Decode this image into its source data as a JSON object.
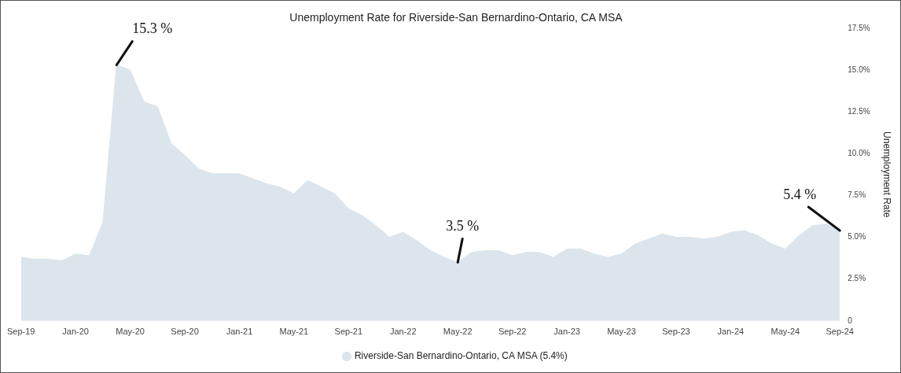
{
  "chart_data": {
    "type": "area",
    "title": "Unemployment Rate for Riverside-San Bernardino-Ontario, CA MSA",
    "ylabel": "Unemployment Rate",
    "x": [
      "2019-09",
      "2019-10",
      "2019-11",
      "2019-12",
      "2020-01",
      "2020-02",
      "2020-03",
      "2020-04",
      "2020-05",
      "2020-06",
      "2020-07",
      "2020-08",
      "2020-09",
      "2020-10",
      "2020-11",
      "2020-12",
      "2021-01",
      "2021-02",
      "2021-03",
      "2021-04",
      "2021-05",
      "2021-06",
      "2021-07",
      "2021-08",
      "2021-09",
      "2021-10",
      "2021-11",
      "2021-12",
      "2022-01",
      "2022-02",
      "2022-03",
      "2022-04",
      "2022-05",
      "2022-06",
      "2022-07",
      "2022-08",
      "2022-09",
      "2022-10",
      "2022-11",
      "2022-12",
      "2023-01",
      "2023-02",
      "2023-03",
      "2023-04",
      "2023-05",
      "2023-06",
      "2023-07",
      "2023-08",
      "2023-09",
      "2023-10",
      "2023-11",
      "2023-12",
      "2024-01",
      "2024-02",
      "2024-03",
      "2024-04",
      "2024-05",
      "2024-06",
      "2024-07",
      "2024-08",
      "2024-09"
    ],
    "series": [
      {
        "name": "Riverside-San Bernardino-Ontario, CA MSA (5.4%)",
        "color": "#dce5eb",
        "values": [
          3.8,
          3.7,
          3.7,
          3.6,
          4.0,
          3.9,
          5.9,
          15.3,
          15.0,
          13.1,
          12.8,
          10.6,
          9.9,
          9.1,
          8.8,
          8.8,
          8.8,
          8.5,
          8.2,
          8.0,
          7.6,
          8.4,
          8.0,
          7.6,
          6.7,
          6.3,
          5.7,
          5.0,
          5.3,
          4.8,
          4.2,
          3.8,
          3.5,
          4.1,
          4.2,
          4.2,
          3.9,
          4.1,
          4.1,
          3.8,
          4.3,
          4.3,
          4.0,
          3.8,
          4.0,
          4.6,
          4.9,
          5.2,
          5.0,
          5.0,
          4.9,
          5.0,
          5.3,
          5.4,
          5.1,
          4.6,
          4.3,
          5.1,
          5.7,
          5.8,
          5.4
        ]
      }
    ],
    "xlim": [
      "2019-09",
      "2024-09"
    ],
    "xticks": [
      {
        "value": "2019-09",
        "label": "Sep-19"
      },
      {
        "value": "2020-01",
        "label": "Jan-20"
      },
      {
        "value": "2020-05",
        "label": "May-20"
      },
      {
        "value": "2020-09",
        "label": "Sep-20"
      },
      {
        "value": "2021-01",
        "label": "Jan-21"
      },
      {
        "value": "2021-05",
        "label": "May-21"
      },
      {
        "value": "2021-09",
        "label": "Sep-21"
      },
      {
        "value": "2022-01",
        "label": "Jan-22"
      },
      {
        "value": "2022-05",
        "label": "May-22"
      },
      {
        "value": "2022-09",
        "label": "Sep-22"
      },
      {
        "value": "2023-01",
        "label": "Jan-23"
      },
      {
        "value": "2023-05",
        "label": "May-23"
      },
      {
        "value": "2023-09",
        "label": "Sep-23"
      },
      {
        "value": "2024-01",
        "label": "Jan-24"
      },
      {
        "value": "2024-05",
        "label": "May-24"
      },
      {
        "value": "2024-09",
        "label": "Sep-24"
      }
    ],
    "ylim": [
      0,
      17.5
    ],
    "yticks": [
      0,
      {
        "value": 2.5,
        "label": "2.5%"
      },
      {
        "value": 5,
        "label": "5.0%"
      },
      {
        "value": 7.5,
        "label": "7.5%"
      },
      {
        "value": 10,
        "label": "10.0%"
      },
      {
        "value": 12.5,
        "label": "12.5%"
      },
      {
        "value": 15,
        "label": "15.0%"
      },
      {
        "value": 17.5,
        "label": "17.5%"
      }
    ],
    "annotations": [
      {
        "text": "15.3 %",
        "x": "2020-04",
        "y": 15.3
      },
      {
        "text": "3.5 %",
        "x": "2022-05",
        "y": 3.5
      },
      {
        "text": "5.4 %",
        "x": "2024-09",
        "y": 5.4
      }
    ],
    "grid": false,
    "legend": "bottom"
  }
}
